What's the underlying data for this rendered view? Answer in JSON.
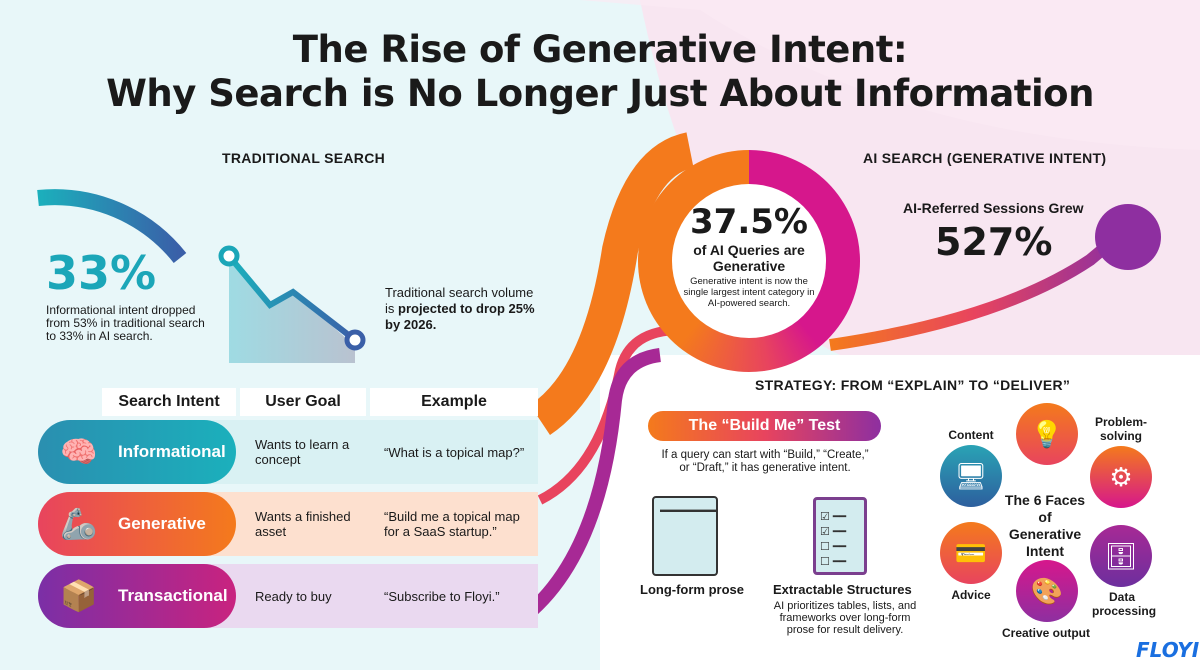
{
  "title": {
    "line1": "The Rise of Generative Intent:",
    "line2": "Why Search is No Longer Just About Information"
  },
  "traditional": {
    "heading": "TRADITIONAL SEARCH",
    "stat": "33%",
    "stat_desc": "Informational intent dropped from 53% in traditional search to 33% in AI search.",
    "volume_text_pre": "Traditional search volume is ",
    "volume_text_bold": "projected to drop 25% by 2026."
  },
  "ai": {
    "heading": "AI SEARCH (GENERATIVE INTENT)",
    "ring_stat": "37.5%",
    "ring_label": "of AI Queries are Generative",
    "ring_desc": "Generative intent is now the single largest intent category in AI-powered search.",
    "sessions_label": "AI-Referred Sessions Grew",
    "sessions_stat": "527%"
  },
  "table": {
    "headers": [
      "Search Intent",
      "User Goal",
      "Example"
    ],
    "rows": [
      {
        "intent": "Informational",
        "goal": "Wants to learn a concept",
        "example": "“What is a topical map?”",
        "icon": "brain-icon",
        "color": "#1ba6b8"
      },
      {
        "intent": "Generative",
        "goal": "Wants a finished asset",
        "example": "“Build me a topical map for a SaaS startup.”",
        "icon": "robot-arm-icon",
        "color": "#f0563a"
      },
      {
        "intent": "Transactional",
        "goal": "Ready to buy",
        "example": "“Subscribe to Floyi.”",
        "icon": "hand-box-icon",
        "color": "#8e2fa0"
      }
    ]
  },
  "strategy": {
    "heading": "STRATEGY: FROM “EXPLAIN” TO “DELIVER”",
    "test_label": "The “Build Me” Test",
    "test_desc": "If a query can start with “Build,” “Create,” or “Draft,” it has generative intent.",
    "prose_label": "Long-form prose",
    "struct_label": "Extractable Structures",
    "struct_desc": "AI prioritizes tables, lists, and frameworks over long-form prose for result delivery."
  },
  "faces": {
    "center": "The 6 Faces of Generative Intent",
    "items": [
      {
        "label": "Content",
        "icon": "monitor-code-icon"
      },
      {
        "label": "",
        "icon": "person-idea-icon"
      },
      {
        "label": "Problem-solving",
        "icon": "gears-icon"
      },
      {
        "label": "Data processing",
        "icon": "database-icon"
      },
      {
        "label": "Creative output",
        "icon": "palette-icon"
      },
      {
        "label": "Advice",
        "icon": "card-hand-icon"
      }
    ]
  },
  "brand": "FLOYI"
}
